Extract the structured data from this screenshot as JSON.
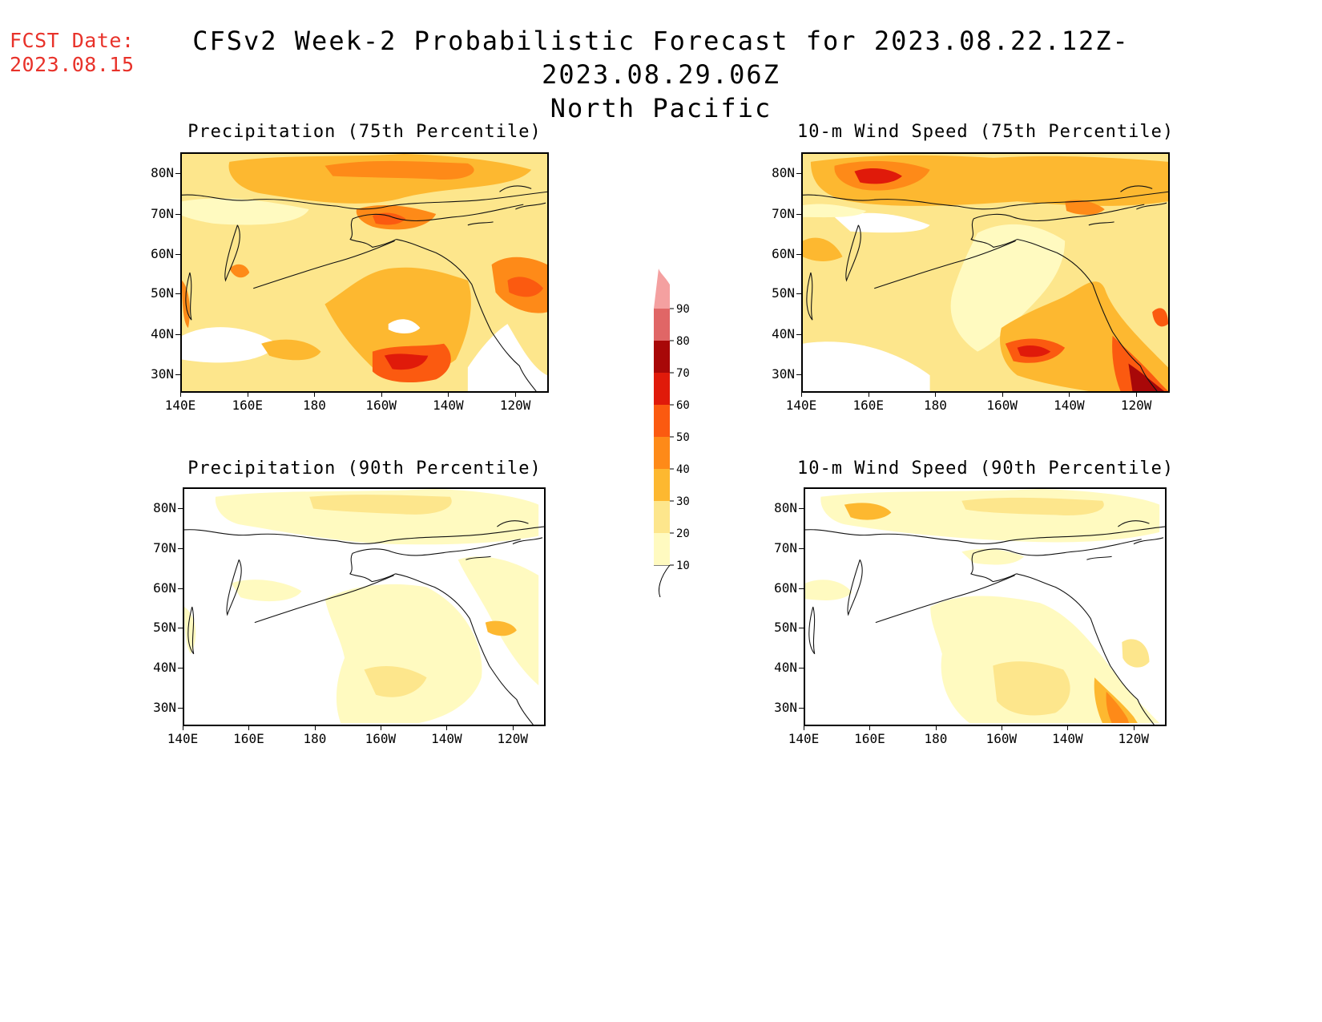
{
  "header": {
    "fcst_label": "FCST Date:",
    "fcst_date": "2023.08.15",
    "title_line1": "CFSv2 Week-2 Probabilistic Forecast for 2023.08.22.12Z-2023.08.29.06Z",
    "title_line2": "North Pacific"
  },
  "colors": {
    "accent_red": "#e8322a",
    "levels": [
      "#fffac0",
      "#fde68c",
      "#fdb830",
      "#fe8a18",
      "#fb5a10",
      "#e01a0a",
      "#a80808",
      "#e06666",
      "#f4a0a0",
      "#fde0e0"
    ]
  },
  "panels": [
    {
      "id": "precip75",
      "title": "Precipitation (75th Percentile)"
    },
    {
      "id": "wind75",
      "title": "10-m Wind Speed (75th Percentile)"
    },
    {
      "id": "precip90",
      "title": "Precipitation (90th Percentile)"
    },
    {
      "id": "wind90",
      "title": "10-m Wind Speed (90th Percentile)"
    }
  ],
  "axes": {
    "lat_labels": [
      "80N",
      "70N",
      "60N",
      "50N",
      "40N",
      "30N"
    ],
    "lon_labels": [
      "140E",
      "160E",
      "180",
      "160W",
      "140W",
      "120W"
    ]
  },
  "colorbar": {
    "levels": [
      "10",
      "20",
      "30",
      "40",
      "50",
      "60",
      "70",
      "80",
      "90"
    ]
  }
}
